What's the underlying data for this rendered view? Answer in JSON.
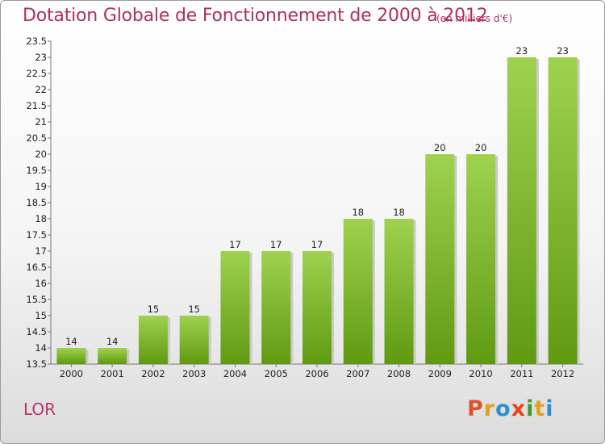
{
  "header": {
    "title": "Dotation Globale de Fonctionnement de 2000 à 2012",
    "unit": "(en milliers d'€)"
  },
  "footer": {
    "commune": "LOR",
    "logo_letters": [
      "P",
      "r",
      "o",
      "x",
      "i",
      "t",
      "i"
    ]
  },
  "colors": {
    "title": "#b0305c",
    "bar_light": "#9fd24f",
    "bar_dark": "#5f9a12",
    "logo": [
      "#e2522a",
      "#d9a320",
      "#2c8fd0",
      "#e8431f",
      "#3a9a2c",
      "#e2a31c",
      "#2c8fd0"
    ]
  },
  "chart_data": {
    "type": "bar",
    "categories": [
      "2000",
      "2001",
      "2002",
      "2003",
      "2004",
      "2005",
      "2006",
      "2007",
      "2008",
      "2009",
      "2010",
      "2011",
      "2012"
    ],
    "values": [
      14,
      14,
      15,
      15,
      17,
      17,
      17,
      18,
      18,
      20,
      20,
      23,
      23
    ],
    "ylim": [
      13.5,
      23.5
    ],
    "yticks": [
      "13.5",
      "14",
      "14.5",
      "15",
      "15.5",
      "16",
      "16.5",
      "17",
      "17.5",
      "18",
      "18.5",
      "19",
      "19.5",
      "20",
      "20.5",
      "21",
      "21.5",
      "22",
      "22.5",
      "23",
      "23.5"
    ],
    "grid": false
  }
}
